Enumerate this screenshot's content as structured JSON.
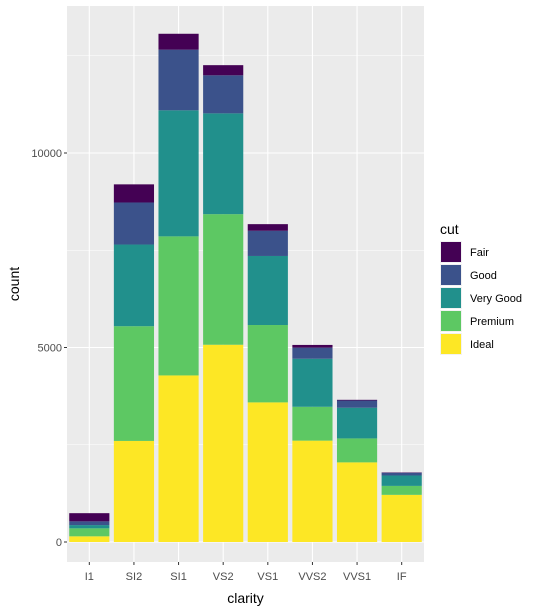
{
  "chart_data": {
    "type": "bar",
    "stacked": true,
    "xlabel": "clarity",
    "ylabel": "count",
    "ylim": [
      0,
      13500
    ],
    "yticks": [
      0,
      5000,
      10000
    ],
    "grid": true,
    "categories": [
      "I1",
      "SI2",
      "SI1",
      "VS2",
      "VS1",
      "VVS2",
      "VVS1",
      "IF"
    ],
    "legend": {
      "title": "cut",
      "position": "right"
    },
    "series": [
      {
        "name": "Fair",
        "color": "#440154",
        "values": [
          210,
          466,
          408,
          261,
          170,
          69,
          17,
          9
        ]
      },
      {
        "name": "Good",
        "color": "#3b528b",
        "values": [
          96,
          1081,
          1560,
          978,
          648,
          286,
          186,
          71
        ]
      },
      {
        "name": "Very Good",
        "color": "#21908c",
        "values": [
          84,
          2100,
          3240,
          2591,
          1775,
          1235,
          789,
          268
        ]
      },
      {
        "name": "Premium",
        "color": "#5dc863",
        "values": [
          205,
          2949,
          3575,
          3357,
          1989,
          870,
          616,
          230
        ]
      },
      {
        "name": "Ideal",
        "color": "#fde725",
        "values": [
          146,
          2598,
          4282,
          5071,
          3589,
          2606,
          2047,
          1212
        ]
      }
    ]
  }
}
